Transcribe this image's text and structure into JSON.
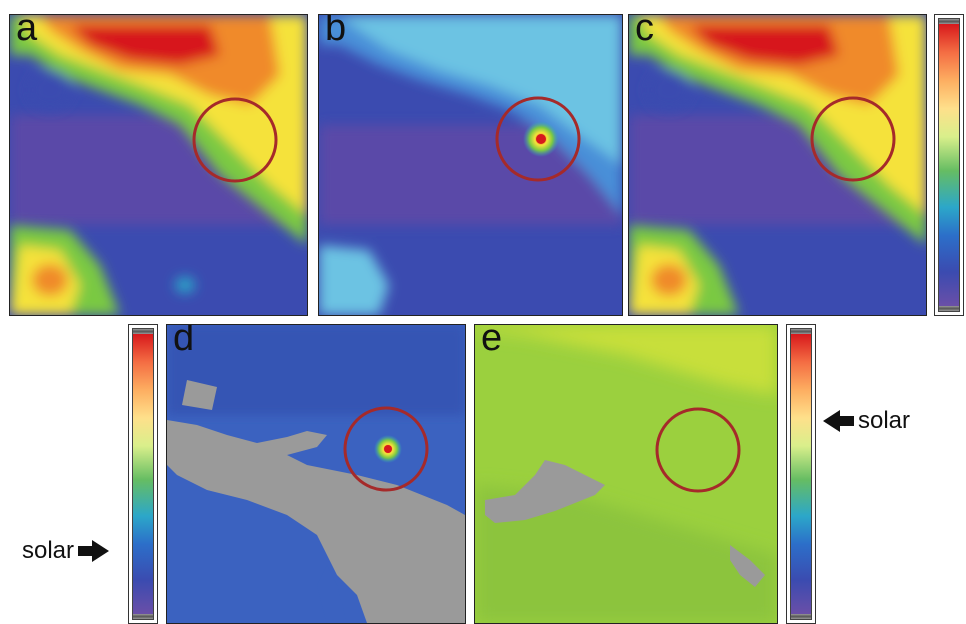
{
  "panels": {
    "a": "a",
    "b": "b",
    "c": "c",
    "d": "d",
    "e": "e"
  },
  "annotations": {
    "left_solar": "solar",
    "right_solar": "solar"
  },
  "colors": {
    "circle": "#a52a2a",
    "mask_gray": "#9a9a9a",
    "purple": "#6a4fa8",
    "blue": "#3b4bb0",
    "green": "#7ac943",
    "yellow": "#f5e23a",
    "red": "#d7191c"
  },
  "icons": {
    "right_arrow": "right-arrow-icon",
    "left_arrow": "left-arrow-icon"
  }
}
